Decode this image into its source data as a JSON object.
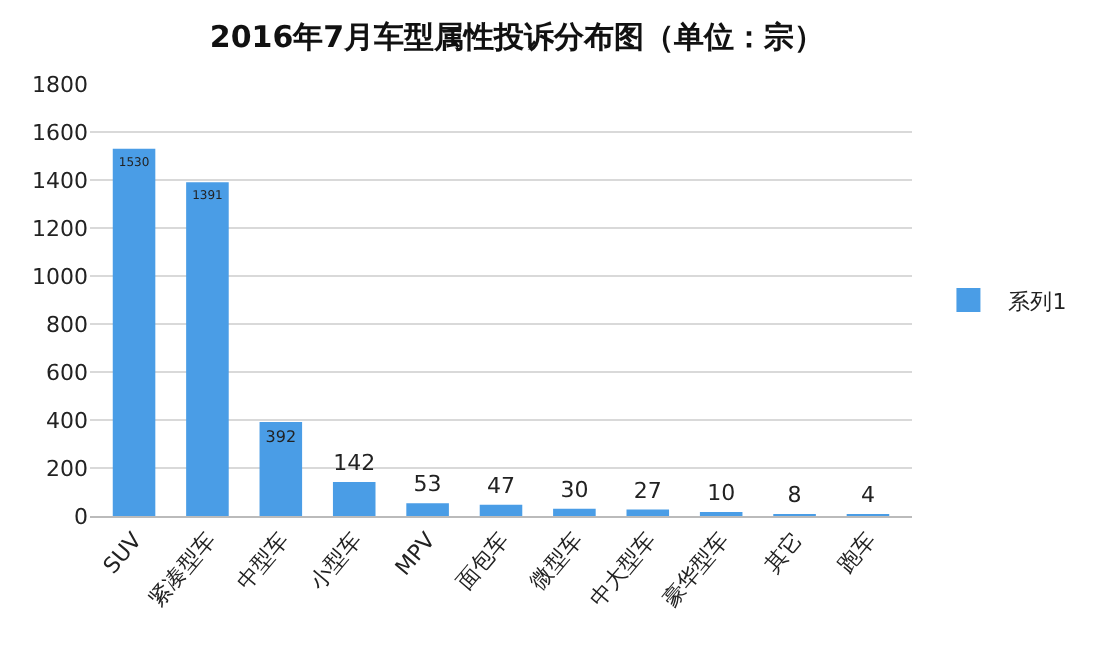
{
  "chart_data": {
    "type": "bar",
    "title": "2016年7月车型属性投诉分布图（单位：宗）",
    "categories": [
      "SUV",
      "紧凑型车",
      "中型车",
      "小型车",
      "MPV",
      "面包车",
      "微型车",
      "中大型车",
      "豪华型车",
      "其它",
      "跑车"
    ],
    "series": [
      {
        "name": "系列1",
        "color": "#4a9de6",
        "values": [
          1530,
          1391,
          392,
          142,
          53,
          47,
          30,
          27,
          10,
          8,
          4
        ]
      }
    ],
    "ylim": [
      0,
      1800
    ],
    "yticks": [
      0,
      200,
      400,
      600,
      800,
      1000,
      1200,
      1400,
      1600,
      1800
    ],
    "grid": "y",
    "legend": "right",
    "data_labels": true
  }
}
